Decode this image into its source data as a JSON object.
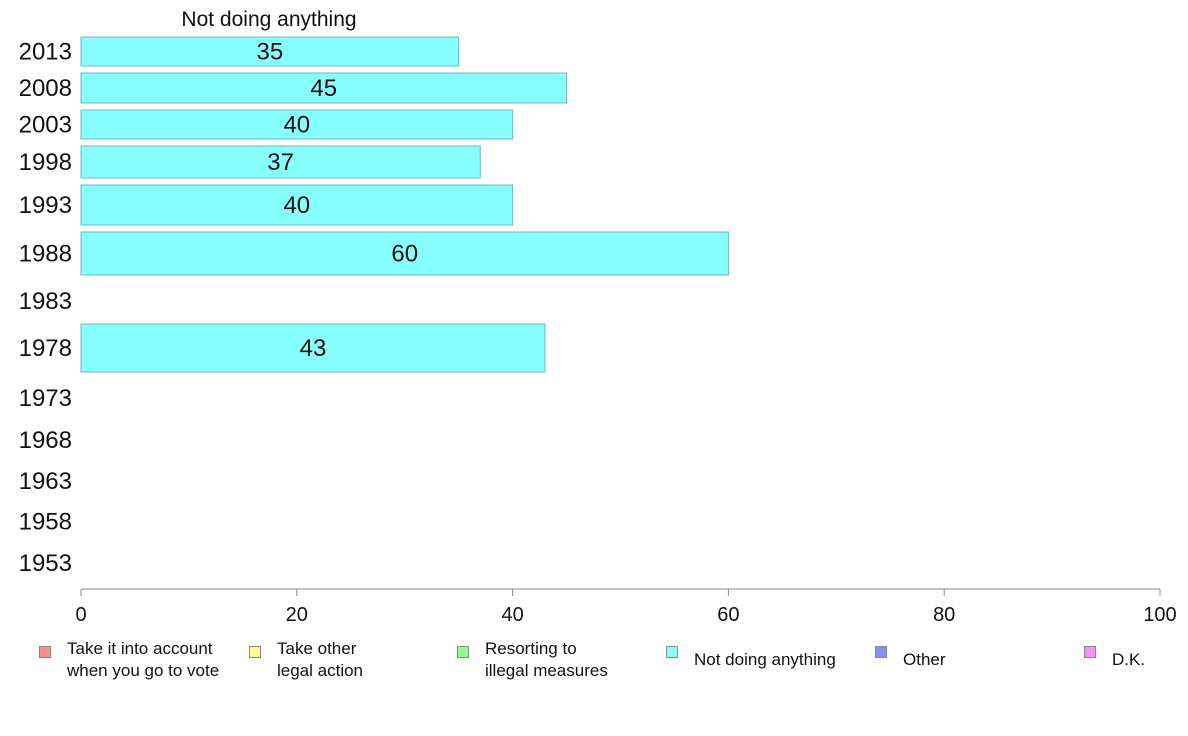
{
  "chart_data": {
    "type": "bar",
    "orientation": "horizontal",
    "title": "Not doing anything",
    "categories": [
      "2013",
      "2008",
      "2003",
      "1998",
      "1993",
      "1988",
      "1983",
      "1978",
      "1973",
      "1968",
      "1963",
      "1958",
      "1953"
    ],
    "series": [
      {
        "name": "Not doing anything",
        "values": [
          35,
          45,
          40,
          37,
          40,
          60,
          null,
          43,
          null,
          null,
          null,
          null,
          null
        ]
      }
    ],
    "data_labels": [
      "35",
      "45",
      "40",
      "37",
      "40",
      "60",
      "",
      "43",
      "",
      "",
      "",
      "",
      ""
    ],
    "xlim": [
      0,
      100
    ],
    "xticks": [
      "0",
      "20",
      "40",
      "60",
      "80",
      "100"
    ],
    "bar_color": "#88ffff",
    "bar_border": "#6fb7bd",
    "legend": {
      "placement": "bottom",
      "items": [
        {
          "label": "Take it into account\nwhen you go to vote",
          "color": "#ff8c8c"
        },
        {
          "label": "Take other\nlegal action",
          "color": "#ffff8c"
        },
        {
          "label": "Resorting to\nillegal measures",
          "color": "#8cff8c"
        },
        {
          "label": "Not doing anything",
          "color": "#88ffff"
        },
        {
          "label": "Other",
          "color": "#8c8cff"
        },
        {
          "label": "D.K.",
          "color": "#ff8cff"
        }
      ]
    }
  }
}
